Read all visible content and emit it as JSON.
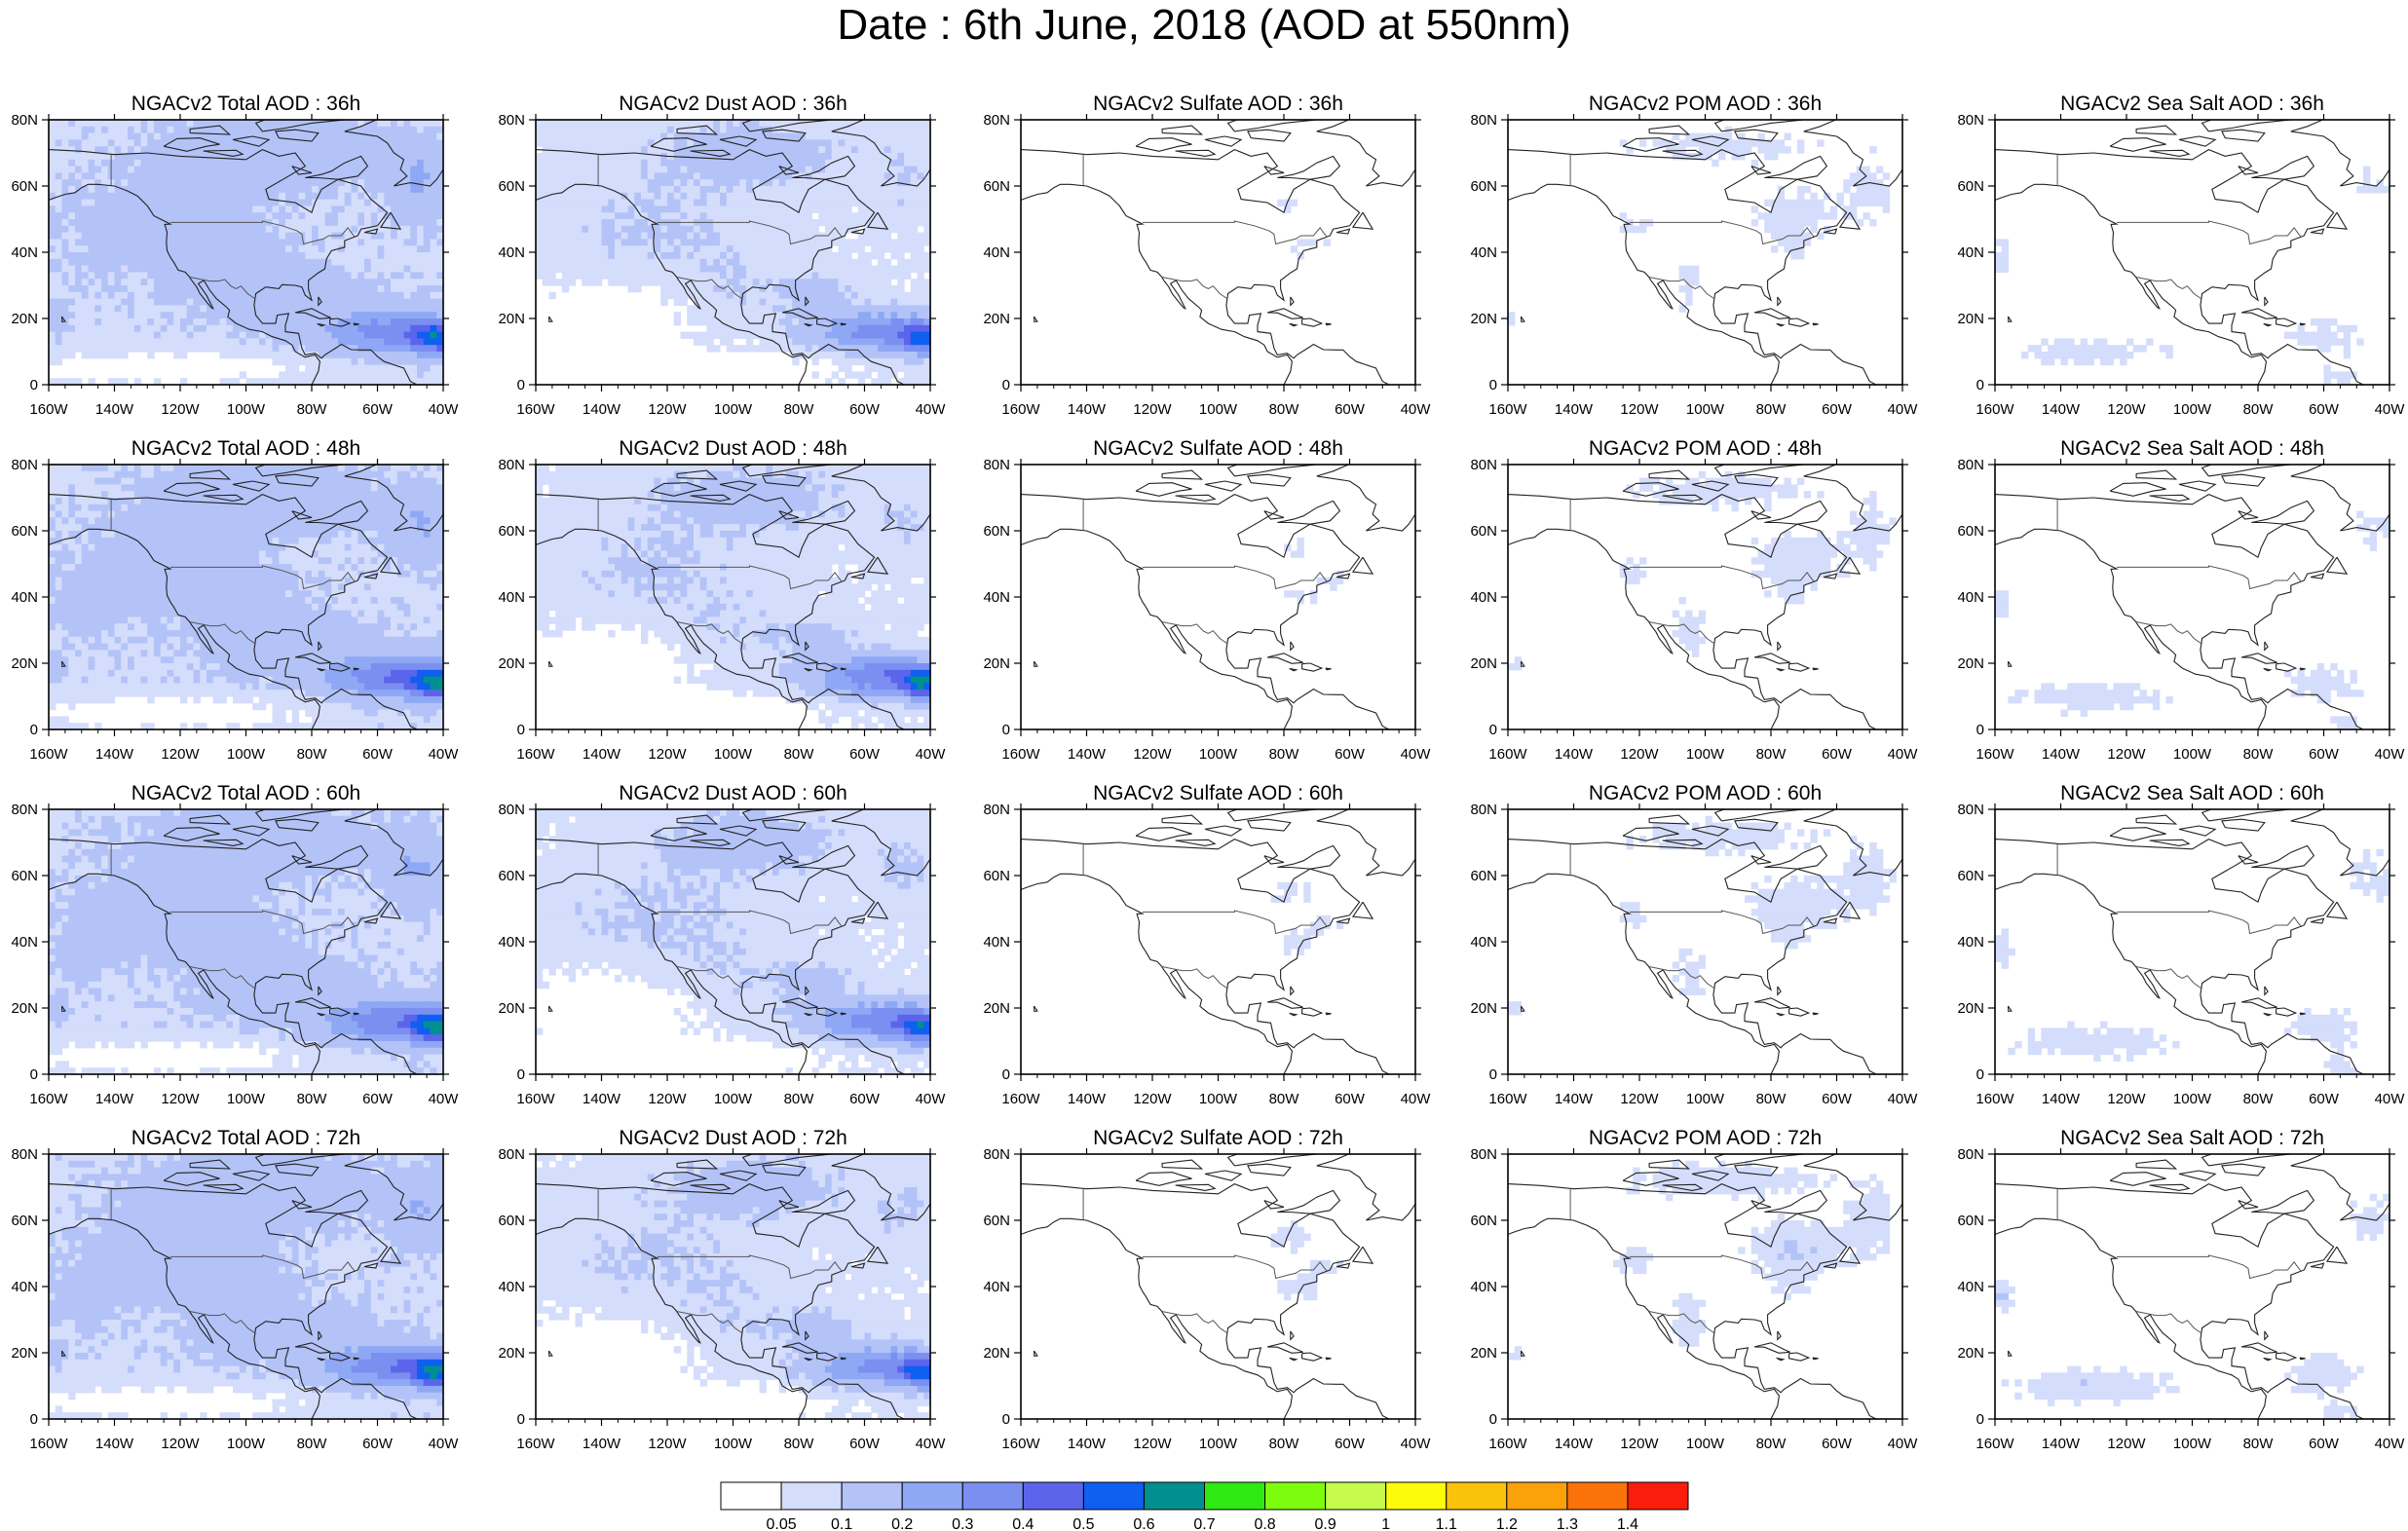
{
  "page_title": "Date : 6th June, 2018 (AOD at 550nm)",
  "x_tick_labels": [
    "160W",
    "140W",
    "120W",
    "100W",
    "80W",
    "60W",
    "40W"
  ],
  "y_tick_labels": [
    "80N",
    "60N",
    "40N",
    "20N",
    "0"
  ],
  "panels": [
    [
      {
        "title": "NGACv2 Total AOD : 36h",
        "field": "total",
        "intensity": 1.0
      },
      {
        "title": "NGACv2 Dust AOD : 36h",
        "field": "dust",
        "intensity": 1.0
      },
      {
        "title": "NGACv2 Sulfate AOD : 36h",
        "field": "sulfate",
        "intensity": 0.6
      },
      {
        "title": "NGACv2 POM AOD : 36h",
        "field": "pom",
        "intensity": 0.8
      },
      {
        "title": "NGACv2 Sea Salt AOD : 36h",
        "field": "seasalt",
        "intensity": 0.7
      }
    ],
    [
      {
        "title": "NGACv2 Total AOD : 48h",
        "field": "total",
        "intensity": 1.15
      },
      {
        "title": "NGACv2 Dust AOD : 48h",
        "field": "dust",
        "intensity": 1.15
      },
      {
        "title": "NGACv2 Sulfate AOD : 48h",
        "field": "sulfate",
        "intensity": 0.7
      },
      {
        "title": "NGACv2 POM AOD : 48h",
        "field": "pom",
        "intensity": 0.9
      },
      {
        "title": "NGACv2 Sea Salt AOD : 48h",
        "field": "seasalt",
        "intensity": 0.8
      }
    ],
    [
      {
        "title": "NGACv2 Total AOD : 60h",
        "field": "total",
        "intensity": 1.1
      },
      {
        "title": "NGACv2 Dust AOD : 60h",
        "field": "dust",
        "intensity": 1.05
      },
      {
        "title": "NGACv2 Sulfate AOD : 60h",
        "field": "sulfate",
        "intensity": 0.8
      },
      {
        "title": "NGACv2 POM AOD : 60h",
        "field": "pom",
        "intensity": 1.0
      },
      {
        "title": "NGACv2 Sea Salt AOD : 60h",
        "field": "seasalt",
        "intensity": 0.9
      }
    ],
    [
      {
        "title": "NGACv2 Total AOD : 72h",
        "field": "total",
        "intensity": 1.1
      },
      {
        "title": "NGACv2 Dust AOD : 72h",
        "field": "dust",
        "intensity": 1.0
      },
      {
        "title": "NGACv2 Sulfate AOD : 72h",
        "field": "sulfate",
        "intensity": 0.9
      },
      {
        "title": "NGACv2 POM AOD : 72h",
        "field": "pom",
        "intensity": 1.1
      },
      {
        "title": "NGACv2 Sea Salt  AOD : 72h",
        "field": "seasalt",
        "intensity": 1.0
      }
    ]
  ],
  "colorbar": {
    "labels": [
      "0.05",
      "0.1",
      "0.2",
      "0.3",
      "0.4",
      "0.5",
      "0.6",
      "0.7",
      "0.8",
      "0.9",
      "1",
      "1.1",
      "1.2",
      "1.3",
      "1.4"
    ],
    "colors": [
      "#ffffff",
      "#d4ddfb",
      "#b3c3f8",
      "#8fa8f5",
      "#7b8ff1",
      "#5d64ec",
      "#0f5ff0",
      "#009090",
      "#2eea12",
      "#7efc0d",
      "#c6fb4d",
      "#fcfc0a",
      "#fbc20b",
      "#fba20b",
      "#fb720b",
      "#fa1d0b"
    ]
  },
  "map_style": {
    "background": "#ffffff",
    "coast": "#222222",
    "border": "#555555",
    "frame": "#000000"
  }
}
